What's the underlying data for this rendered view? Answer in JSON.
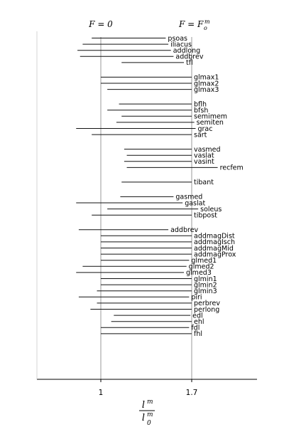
{
  "chart_data": {
    "type": "bar",
    "orientation": "horizontal",
    "header_left": "F = 0",
    "header_right": {
      "main": "F = F",
      "sup": "m",
      "sub": "o"
    },
    "xlabel": {
      "num": "l",
      "num_sup": "m",
      "den": "l",
      "den_sup": "m",
      "den_sub": "0"
    },
    "xticks": [
      1,
      1.7
    ],
    "xtick_labels": [
      "1",
      "1.7"
    ],
    "xlim": [
      0.5,
      2.3
    ],
    "reference_lines": [
      1,
      1.7
    ],
    "groups": [
      {
        "items": [
          {
            "name": "psoas",
            "start": 0.93,
            "end": 1.5
          },
          {
            "name": "iliacus",
            "start": 0.86,
            "end": 1.52
          },
          {
            "name": "addlong",
            "start": 0.82,
            "end": 1.54
          },
          {
            "name": "addbrev",
            "start": 0.84,
            "end": 1.56
          },
          {
            "name": "tfl",
            "start": 1.16,
            "end": 1.64
          }
        ]
      },
      {
        "items": [
          {
            "name": "glmax1",
            "start": 1.0,
            "end": 1.7
          },
          {
            "name": "glmax2",
            "start": 1.0,
            "end": 1.7
          },
          {
            "name": "glmax3",
            "start": 1.05,
            "end": 1.7
          }
        ]
      },
      {
        "items": [
          {
            "name": "bflh",
            "start": 1.14,
            "end": 1.7
          },
          {
            "name": "bfsh",
            "start": 1.05,
            "end": 1.7
          },
          {
            "name": "semimem",
            "start": 1.16,
            "end": 1.7
          },
          {
            "name": "semiten",
            "start": 1.12,
            "end": 1.72
          },
          {
            "name": "grac",
            "start": 0.81,
            "end": 1.73
          },
          {
            "name": "sart",
            "start": 0.93,
            "end": 1.7
          }
        ]
      },
      {
        "items": [
          {
            "name": "vasmed",
            "start": 1.18,
            "end": 1.7
          },
          {
            "name": "vaslat",
            "start": 1.2,
            "end": 1.7
          },
          {
            "name": "vasint",
            "start": 1.18,
            "end": 1.7
          },
          {
            "name": "recfem",
            "start": 1.2,
            "end": 1.9
          }
        ]
      },
      {
        "items": [
          {
            "name": "tibant",
            "start": 1.16,
            "end": 1.7
          }
        ]
      },
      {
        "items": [
          {
            "name": "gasmed",
            "start": 1.15,
            "end": 1.56
          },
          {
            "name": "gaslat",
            "start": 0.81,
            "end": 1.63
          },
          {
            "name": "soleus",
            "start": 1.05,
            "end": 1.75
          },
          {
            "name": "tibpost",
            "start": 0.93,
            "end": 1.7
          }
        ]
      },
      {
        "items": [
          {
            "name": "addbrev",
            "start": 0.83,
            "end": 1.52
          },
          {
            "name": "addmagDist",
            "start": 1.0,
            "end": 1.7
          },
          {
            "name": "addmagIsch",
            "start": 1.0,
            "end": 1.7
          },
          {
            "name": "addmagMid",
            "start": 1.0,
            "end": 1.7
          },
          {
            "name": "addmagProx",
            "start": 1.0,
            "end": 1.7
          },
          {
            "name": "glmed1",
            "start": 1.0,
            "end": 1.68
          },
          {
            "name": "glmed2",
            "start": 0.86,
            "end": 1.66
          },
          {
            "name": "glmed3",
            "start": 0.81,
            "end": 1.64
          },
          {
            "name": "glmin1",
            "start": 1.0,
            "end": 1.7
          },
          {
            "name": "glmin2",
            "start": 1.0,
            "end": 1.7
          },
          {
            "name": "glmin3",
            "start": 0.97,
            "end": 1.7
          },
          {
            "name": "piri",
            "start": 0.83,
            "end": 1.68
          },
          {
            "name": "perbrev",
            "start": 0.97,
            "end": 1.7
          },
          {
            "name": "perlong",
            "start": 0.92,
            "end": 1.7
          },
          {
            "name": "edl",
            "start": 1.1,
            "end": 1.69
          },
          {
            "name": "ehl",
            "start": 1.08,
            "end": 1.7
          },
          {
            "name": "fdl",
            "start": 1.0,
            "end": 1.68
          },
          {
            "name": "fhl",
            "start": 1.0,
            "end": 1.7
          }
        ]
      }
    ]
  }
}
